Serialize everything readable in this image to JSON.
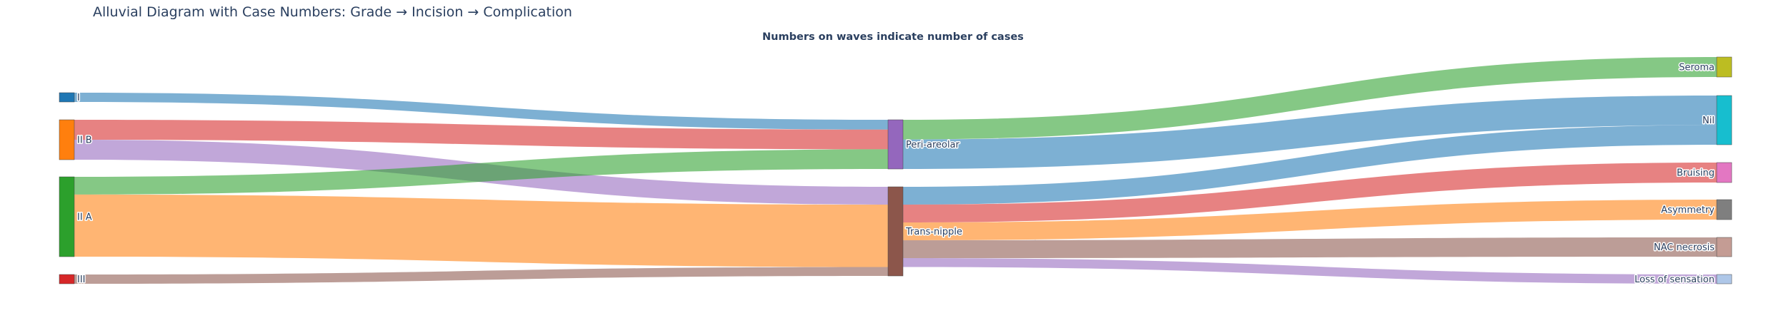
{
  "title": "Alluvial Diagram with Case Numbers: Grade → Incision → Complication",
  "subtitle": "Numbers on waves indicate number of cases",
  "diagram": {
    "type": "alluvial",
    "stages": [
      "Grade",
      "Incision",
      "Complication"
    ],
    "nodes": [
      {
        "id": "grade_I",
        "label": "I",
        "color": "#1f77b4"
      },
      {
        "id": "grade_IIB",
        "label": "II B",
        "color": "#ff7f0e"
      },
      {
        "id": "grade_IIA",
        "label": "II A",
        "color": "#2ca02c"
      },
      {
        "id": "grade_III",
        "label": "III",
        "color": "#d62728"
      },
      {
        "id": "inc_peri",
        "label": "Peri-areolar",
        "color": "#9467bd"
      },
      {
        "id": "inc_trans",
        "label": "Trans-nipple",
        "color": "#8c564b"
      },
      {
        "id": "comp_seroma",
        "label": "Seroma",
        "color": "#bcbd22"
      },
      {
        "id": "comp_nil",
        "label": "Nil",
        "color": "#17becf"
      },
      {
        "id": "comp_bruising",
        "label": "Bruising",
        "color": "#e377c2"
      },
      {
        "id": "comp_asym",
        "label": "Asymmetry",
        "color": "#7f7f7f"
      },
      {
        "id": "comp_nac",
        "label": "NAC necrosis",
        "color": "#c49c94"
      },
      {
        "id": "comp_loss",
        "label": "Loss of sensation",
        "color": "#aec7e8"
      }
    ],
    "links": [
      {
        "source": "grade_I",
        "target": "inc_peri",
        "value": 1,
        "color": "#1f77b4"
      },
      {
        "source": "grade_IIB",
        "target": "inc_peri",
        "value": 2,
        "color": "#d62728"
      },
      {
        "source": "grade_IIB",
        "target": "inc_trans",
        "value": 2,
        "color": "#9467bd"
      },
      {
        "source": "grade_IIA",
        "target": "inc_peri",
        "value": 2,
        "color": "#2ca02c"
      },
      {
        "source": "grade_IIA",
        "target": "inc_trans",
        "value": 7,
        "color": "#ff7f0e"
      },
      {
        "source": "grade_III",
        "target": "inc_trans",
        "value": 1,
        "color": "#8c564b"
      },
      {
        "source": "inc_peri",
        "target": "comp_seroma",
        "value": 2,
        "color": "#2ca02c"
      },
      {
        "source": "inc_peri",
        "target": "comp_nil",
        "value": 3,
        "color": "#1f77b4"
      },
      {
        "source": "inc_trans",
        "target": "comp_nil",
        "value": 2,
        "color": "#1f77b4"
      },
      {
        "source": "inc_trans",
        "target": "comp_bruising",
        "value": 2,
        "color": "#d62728"
      },
      {
        "source": "inc_trans",
        "target": "comp_asym",
        "value": 2,
        "color": "#ff7f0e"
      },
      {
        "source": "inc_trans",
        "target": "comp_nac",
        "value": 2,
        "color": "#8c564b"
      },
      {
        "source": "inc_trans",
        "target": "comp_loss",
        "value": 1,
        "color": "#9467bd"
      }
    ]
  }
}
